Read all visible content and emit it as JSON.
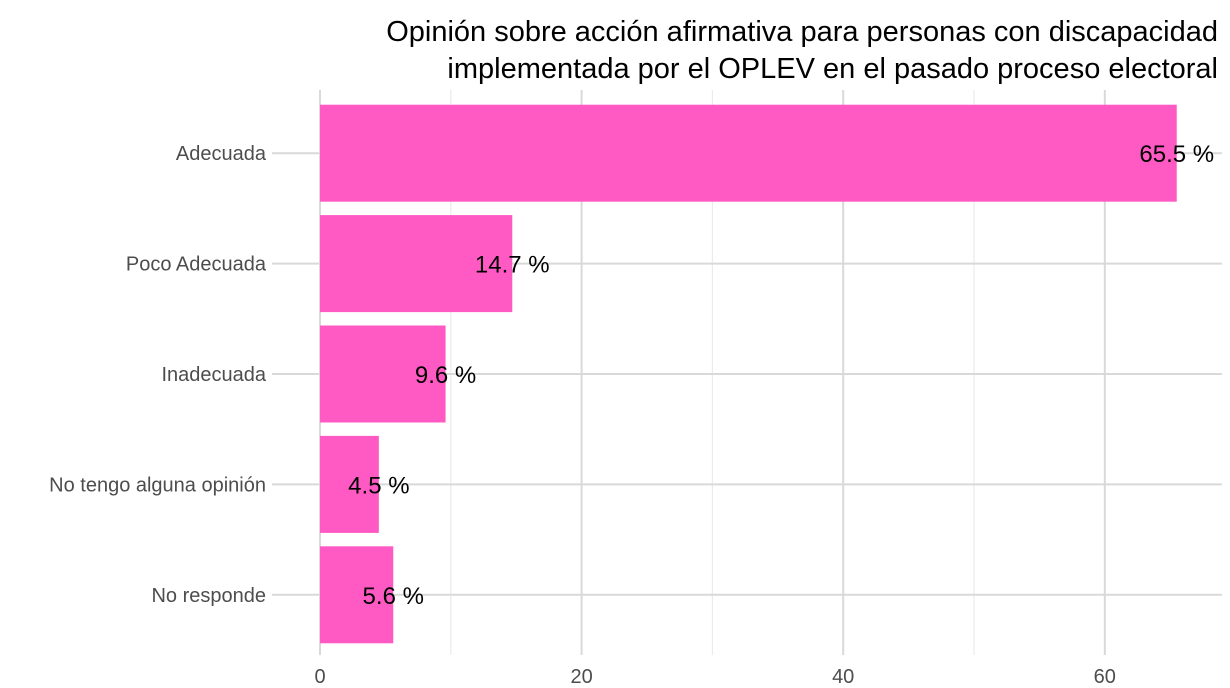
{
  "chart_data": {
    "type": "bar",
    "orientation": "horizontal",
    "title_lines": [
      "Opinión sobre acción afirmativa para personas con discapacidad",
      "implementada por el OPLEV en el pasado proceso electoral"
    ],
    "categories": [
      "Adecuada",
      "Poco Adecuada",
      "Inadecuada",
      "No tengo alguna opinión",
      "No responde"
    ],
    "values": [
      65.5,
      14.7,
      9.6,
      4.5,
      5.6
    ],
    "value_labels": [
      "65.5 %",
      "14.7 %",
      "9.6 %",
      "4.5 %",
      "5.6 %"
    ],
    "xticks": [
      0,
      20,
      40,
      60
    ],
    "xlim": [
      0,
      69
    ],
    "xlabel": "",
    "ylabel": "",
    "grid": true,
    "bar_color": "#ff5ac4"
  }
}
